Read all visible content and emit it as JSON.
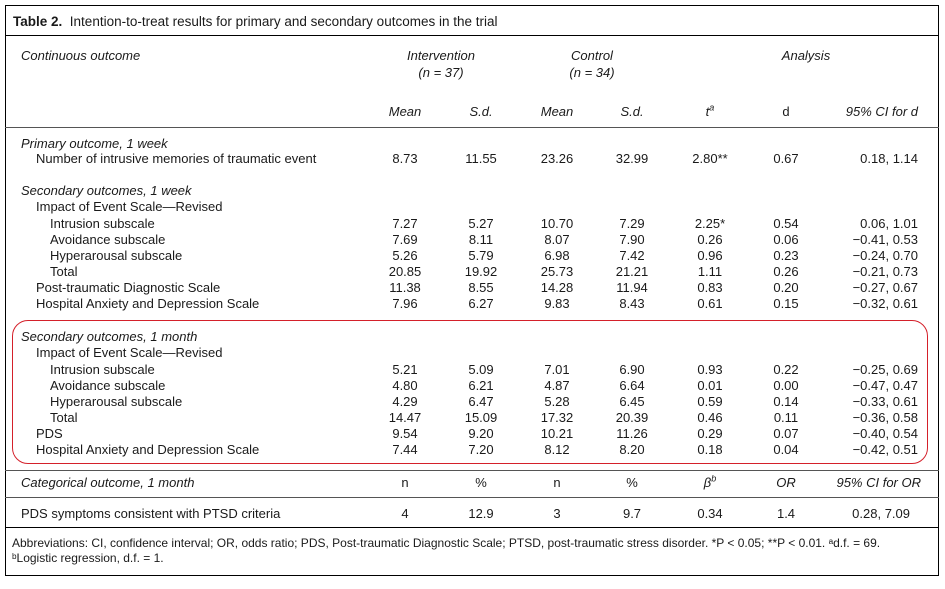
{
  "table": {
    "number": "Table 2.",
    "caption": "Intention-to-treat results for primary and secondary outcomes in the trial",
    "header": {
      "continuous_outcome": "Continuous outcome",
      "intervention": "Intervention",
      "intervention_n": "(n = 37)",
      "control": "Control",
      "control_n": "(n = 34)",
      "analysis": "Analysis",
      "cols": [
        "Mean",
        "S.d.",
        "Mean",
        "S.d.",
        "t",
        "d",
        "95% CI for d"
      ],
      "t_sup": "a"
    },
    "rows": [
      {
        "label": "Primary outcome, 1 week",
        "style": "section"
      },
      {
        "label": "Number of intrusive memories of traumatic event",
        "indent": 1,
        "values": [
          "8.73",
          "11.55",
          "23.26",
          "32.99",
          "2.80**",
          "0.67",
          "0.18, 1.14"
        ]
      },
      {
        "label": "Secondary outcomes, 1 week",
        "style": "section"
      },
      {
        "label": "Impact of Event Scale—Revised",
        "indent": 1
      },
      {
        "label": "Intrusion subscale",
        "indent": 2,
        "values": [
          "7.27",
          "5.27",
          "10.70",
          "7.29",
          "2.25*",
          "0.54",
          "0.06, 1.01"
        ]
      },
      {
        "label": "Avoidance subscale",
        "indent": 2,
        "values": [
          "7.69",
          "8.11",
          "8.07",
          "7.90",
          "0.26",
          "0.06",
          "−0.41, 0.53"
        ]
      },
      {
        "label": "Hyperarousal subscale",
        "indent": 2,
        "values": [
          "5.26",
          "5.79",
          "6.98",
          "7.42",
          "0.96",
          "0.23",
          "−0.24, 0.70"
        ]
      },
      {
        "label": "Total",
        "indent": 2,
        "values": [
          "20.85",
          "19.92",
          "25.73",
          "21.21",
          "1.11",
          "0.26",
          "−0.21, 0.73"
        ]
      },
      {
        "label": "Post-traumatic Diagnostic Scale",
        "indent": 1,
        "values": [
          "11.38",
          "8.55",
          "14.28",
          "11.94",
          "0.83",
          "0.20",
          "−0.27, 0.67"
        ]
      },
      {
        "label": "Hospital Anxiety and Depression Scale",
        "indent": 1,
        "values": [
          "7.96",
          "6.27",
          "9.83",
          "8.43",
          "0.61",
          "0.15",
          "−0.32, 0.61"
        ]
      },
      {
        "label": "Secondary outcomes, 1 month",
        "style": "section"
      },
      {
        "label": "Impact of Event Scale—Revised",
        "indent": 1
      },
      {
        "label": "Intrusion subscale",
        "indent": 2,
        "values": [
          "5.21",
          "5.09",
          "7.01",
          "6.90",
          "0.93",
          "0.22",
          "−0.25, 0.69"
        ]
      },
      {
        "label": "Avoidance subscale",
        "indent": 2,
        "values": [
          "4.80",
          "6.21",
          "4.87",
          "6.64",
          "0.01",
          "0.00",
          "−0.47, 0.47"
        ]
      },
      {
        "label": "Hyperarousal subscale",
        "indent": 2,
        "values": [
          "4.29",
          "6.47",
          "5.28",
          "6.45",
          "0.59",
          "0.14",
          "−0.33, 0.61"
        ]
      },
      {
        "label": "Total",
        "indent": 2,
        "values": [
          "14.47",
          "15.09",
          "17.32",
          "20.39",
          "0.46",
          "0.11",
          "−0.36, 0.58"
        ]
      },
      {
        "label": "PDS",
        "indent": 1,
        "values": [
          "9.54",
          "9.20",
          "10.21",
          "11.26",
          "0.29",
          "0.07",
          "−0.40, 0.54"
        ]
      },
      {
        "label": "Hospital Anxiety and Depression Scale",
        "indent": 1,
        "values": [
          "7.44",
          "7.20",
          "8.12",
          "8.20",
          "0.18",
          "0.04",
          "−0.42, 0.51"
        ]
      }
    ],
    "categorical_header": {
      "label": "Categorical outcome, 1 month",
      "cols": [
        "n",
        "%",
        "n",
        "%",
        "β",
        "OR",
        "95% CI for OR"
      ],
      "beta_sup": "b"
    },
    "categorical_row": {
      "label": "PDS symptoms consistent with PTSD criteria",
      "values": [
        "4",
        "12.9",
        "3",
        "9.7",
        "0.34",
        "1.4",
        "0.28, 7.09"
      ]
    },
    "footnote_line1": "Abbreviations: CI, confidence interval; OR, odds ratio; PDS, Post-traumatic Diagnostic Scale; PTSD, post-traumatic stress disorder. *P < 0.05; **P < 0.01. ᵃd.f. = 69.",
    "footnote_line2": "ᵇLogistic regression, d.f. = 1."
  },
  "highlight_color": "#d4202a"
}
